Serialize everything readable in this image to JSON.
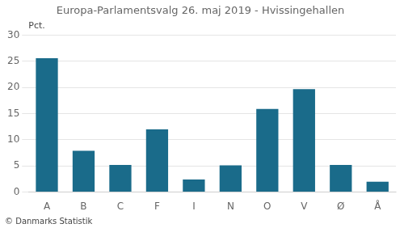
{
  "chart_data": {
    "type": "bar",
    "title": "Europa-Parlamentsvalg 26. maj 2019 - Hvissingehallen",
    "categories": [
      "A",
      "B",
      "C",
      "F",
      "I",
      "N",
      "O",
      "V",
      "Ø",
      "Å"
    ],
    "values": [
      25.6,
      7.9,
      5.2,
      12.0,
      2.4,
      5.1,
      15.9,
      19.7,
      5.2,
      2.0
    ],
    "color": "#1a6b8a",
    "ylabel": "Pct.",
    "ylim": [
      0,
      30
    ],
    "yticks": [
      0,
      5,
      10,
      15,
      20,
      25,
      30
    ],
    "grid": true,
    "footer": "© Danmarks Statistik"
  }
}
